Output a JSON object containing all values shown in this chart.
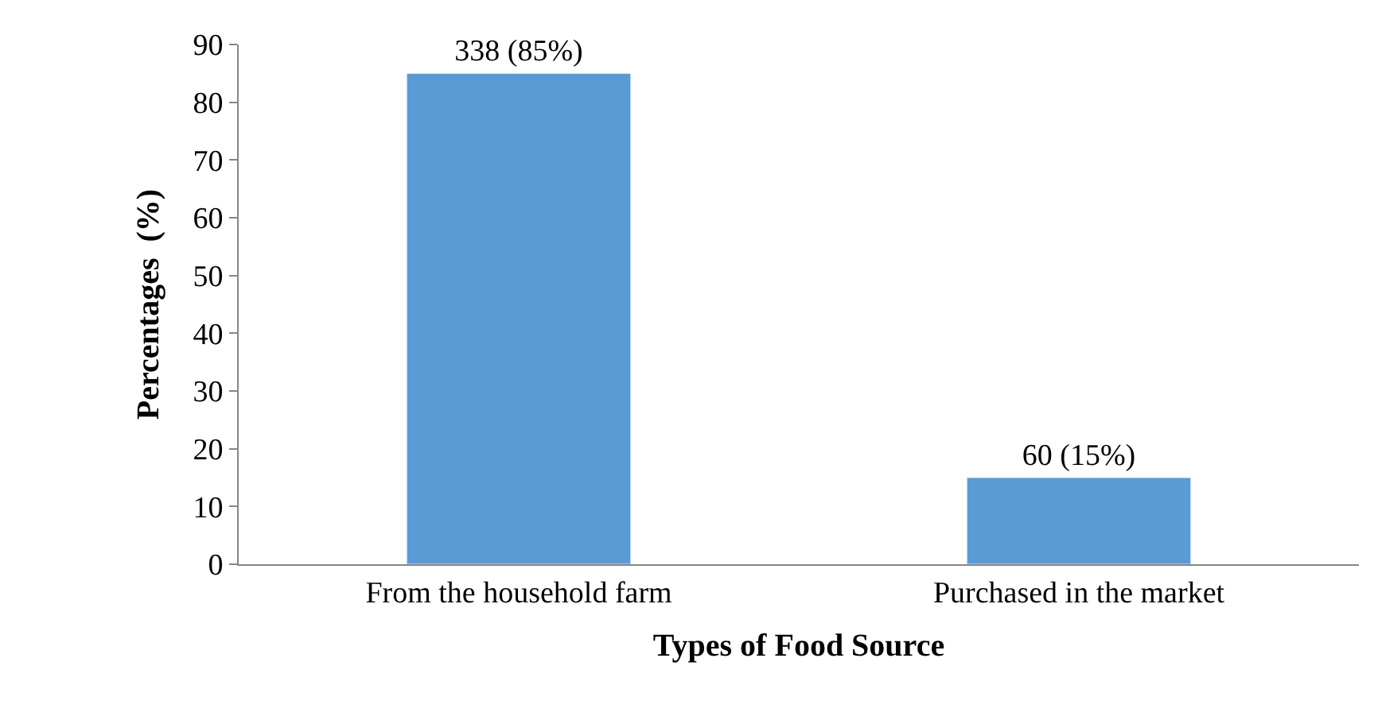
{
  "chart_data": {
    "type": "bar",
    "categories": [
      "From the household farm",
      "Purchased in the market"
    ],
    "values": [
      85,
      15
    ],
    "value_labels": [
      "338 (85%)",
      "60 (15%)"
    ],
    "color": "#5b9bd5",
    "xlabel": "Types of Food Source",
    "ylabel": "Percentages  (%)",
    "ylim": [
      0,
      90
    ],
    "yticks": [
      0,
      10,
      20,
      30,
      40,
      50,
      60,
      70,
      80,
      90
    ]
  }
}
